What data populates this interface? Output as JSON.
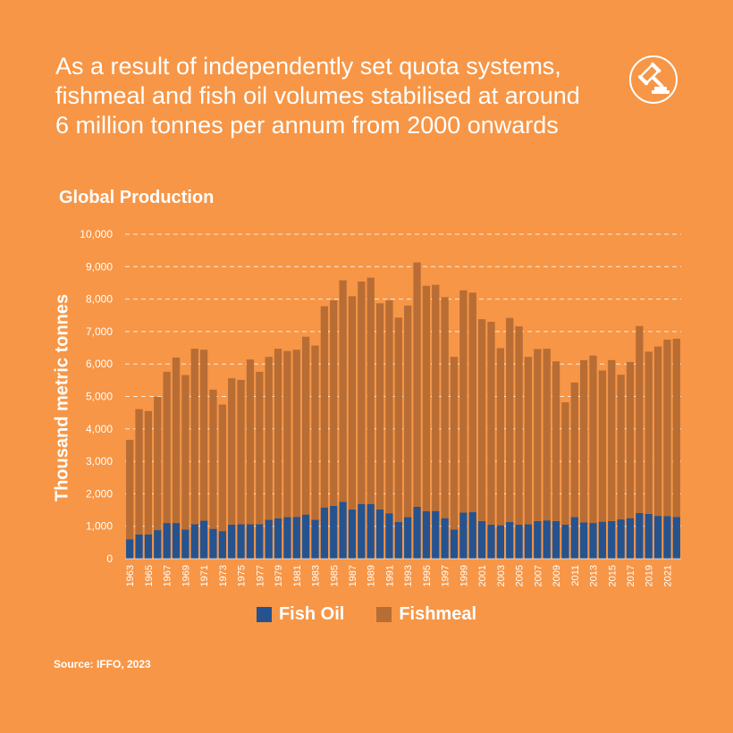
{
  "headline": {
    "lines": [
      "As a result of independently set quota systems,",
      "fishmeal and fish oil volumes stabilised at around",
      "6 million tonnes per annum from 2000 onwards"
    ]
  },
  "colors": {
    "background": "#F79646",
    "fish_oil": "#25538F",
    "fishmeal": "#B86D35",
    "text": "#FFFFFF"
  },
  "source": "Source: IFFO, 2023",
  "chart_data": {
    "type": "bar",
    "stacked": true,
    "title": "Global Production",
    "ylabel": "Thousand metric tonnes",
    "xlabel": "",
    "ylim": [
      0,
      10000
    ],
    "yticks": [
      0,
      1000,
      2000,
      3000,
      4000,
      5000,
      6000,
      7000,
      8000,
      9000,
      10000
    ],
    "ytick_labels": [
      "0",
      "1,000",
      "2,000",
      "3,000",
      "4,000",
      "5,000",
      "6,000",
      "7,000",
      "8,000",
      "9,000",
      "10,000"
    ],
    "grid": true,
    "legend_position": "bottom-center",
    "categories": [
      1963,
      1964,
      1965,
      1966,
      1967,
      1968,
      1969,
      1970,
      1971,
      1972,
      1973,
      1974,
      1975,
      1976,
      1977,
      1978,
      1979,
      1980,
      1981,
      1982,
      1983,
      1984,
      1985,
      1986,
      1987,
      1988,
      1989,
      1990,
      1991,
      1992,
      1993,
      1994,
      1995,
      1996,
      1997,
      1998,
      1999,
      2000,
      2001,
      2002,
      2003,
      2004,
      2005,
      2006,
      2007,
      2008,
      2009,
      2010,
      2011,
      2012,
      2013,
      2014,
      2015,
      2016,
      2017,
      2018,
      2019,
      2020,
      2021,
      2022
    ],
    "series": [
      {
        "name": "Fish Oil",
        "values": [
          600,
          750,
          750,
          880,
          1100,
          1100,
          900,
          1060,
          1170,
          920,
          850,
          1050,
          1060,
          1060,
          1060,
          1200,
          1240,
          1280,
          1290,
          1360,
          1200,
          1580,
          1630,
          1750,
          1520,
          1680,
          1680,
          1520,
          1400,
          1130,
          1280,
          1600,
          1460,
          1470,
          1250,
          900,
          1420,
          1440,
          1160,
          1050,
          1030,
          1130,
          1050,
          1060,
          1160,
          1180,
          1160,
          1050,
          1280,
          1120,
          1100,
          1140,
          1160,
          1210,
          1250,
          1410,
          1380,
          1320,
          1310,
          1290
        ]
      },
      {
        "name": "Fishmeal",
        "values": [
          3060,
          3860,
          3800,
          4110,
          4660,
          5100,
          4760,
          5410,
          5270,
          4290,
          3900,
          4510,
          4450,
          5080,
          4700,
          5020,
          5230,
          5120,
          5150,
          5480,
          5370,
          6200,
          6330,
          6830,
          6570,
          6860,
          6980,
          6350,
          6560,
          6300,
          6520,
          7530,
          6950,
          6970,
          6810,
          5320,
          6850,
          6760,
          6220,
          6250,
          5460,
          6290,
          6110,
          5160,
          5300,
          5290,
          4920,
          3770,
          4150,
          5000,
          5160,
          4660,
          4960,
          4460,
          4810,
          5760,
          5000,
          5220,
          5440,
          5490
        ]
      }
    ],
    "x_tick_labels_shown": [
      1963,
      1965,
      1967,
      1969,
      1971,
      1973,
      1975,
      1977,
      1979,
      1981,
      1983,
      1985,
      1987,
      1989,
      1991,
      1993,
      1995,
      1997,
      1999,
      2001,
      2003,
      2005,
      2007,
      2009,
      2011,
      2013,
      2015,
      2017,
      2019,
      2021
    ]
  }
}
